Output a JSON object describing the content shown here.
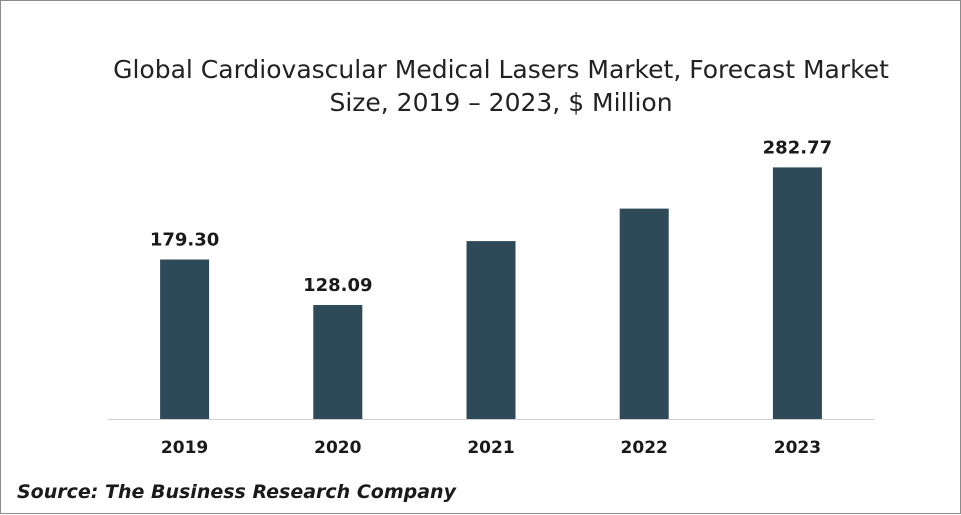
{
  "chart_data": {
    "type": "bar",
    "title": "Global Cardiovascular Medical Lasers Market, Forecast Market Size, 2019 – 2023, $ Million",
    "categories": [
      "2019",
      "2020",
      "2021",
      "2022",
      "2023"
    ],
    "values": [
      179.3,
      128.09,
      200.0,
      236.5,
      282.77
    ],
    "data_labels": [
      "179.30",
      "128.09",
      "",
      "",
      "282.77"
    ],
    "xlabel": "",
    "ylabel": "",
    "ylim": [
      0,
      290
    ],
    "grid": false,
    "legend": "none",
    "bar_color": "#2e4a59"
  },
  "source": "Source: The Business Research Company"
}
